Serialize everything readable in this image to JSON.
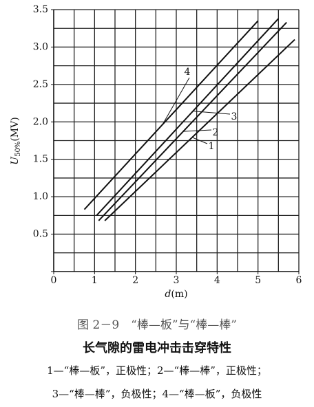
{
  "chart_data": {
    "type": "line",
    "xlabel": {
      "main": "d",
      "unit": "(m)"
    },
    "ylabel": {
      "main": "U",
      "sub": "50%",
      "unit": "(MV)"
    },
    "xlim": [
      0,
      6
    ],
    "ylim": [
      0,
      3.5
    ],
    "xticks": [
      0,
      1,
      2,
      3,
      4,
      5,
      6
    ],
    "yticks": [
      0,
      {
        "value": 0.5,
        "label": "0.5"
      },
      {
        "value": 1,
        "label": "1.0"
      },
      {
        "value": 1.5,
        "label": "1.5"
      },
      {
        "value": 2,
        "label": "2.0"
      },
      {
        "value": 2.5,
        "label": "2.5"
      },
      {
        "value": 3,
        "label": "3.0"
      },
      {
        "value": 3.5,
        "label": "3.5"
      }
    ],
    "xgrid": [
      0.5,
      1,
      1.5,
      2,
      2.5,
      3,
      3.5,
      4,
      4.5,
      5,
      5.5,
      6
    ],
    "ygrid": [
      0.25,
      0.5,
      0.75,
      1,
      1.25,
      1.5,
      1.75,
      2,
      2.25,
      2.5,
      2.75,
      3,
      3.25,
      3.5
    ],
    "grid": true,
    "series": [
      {
        "name": "1",
        "color": "#111111",
        "x": [
          1.25,
          5.9
        ],
        "values": [
          0.68,
          3.1
        ]
      },
      {
        "name": "2",
        "color": "#111111",
        "x": [
          1.1,
          5.7
        ],
        "values": [
          0.68,
          3.33
        ]
      },
      {
        "name": "3",
        "color": "#111111",
        "x": [
          1.05,
          5.5
        ],
        "values": [
          0.75,
          3.38
        ]
      },
      {
        "name": "4",
        "color": "#111111",
        "x": [
          0.75,
          5.0
        ],
        "values": [
          0.83,
          3.35
        ]
      }
    ]
  },
  "caption": {
    "figure": "图 2－9　“棒—板”与“棒—棒”",
    "title": "长气隙的雷电冲击击穿特性",
    "notes": [
      "1—“棒—板”，正极性；2—“棒—棒”，正极性；",
      "3—“棒—棒”，负极性；4—“棒—板”，负极性"
    ]
  }
}
